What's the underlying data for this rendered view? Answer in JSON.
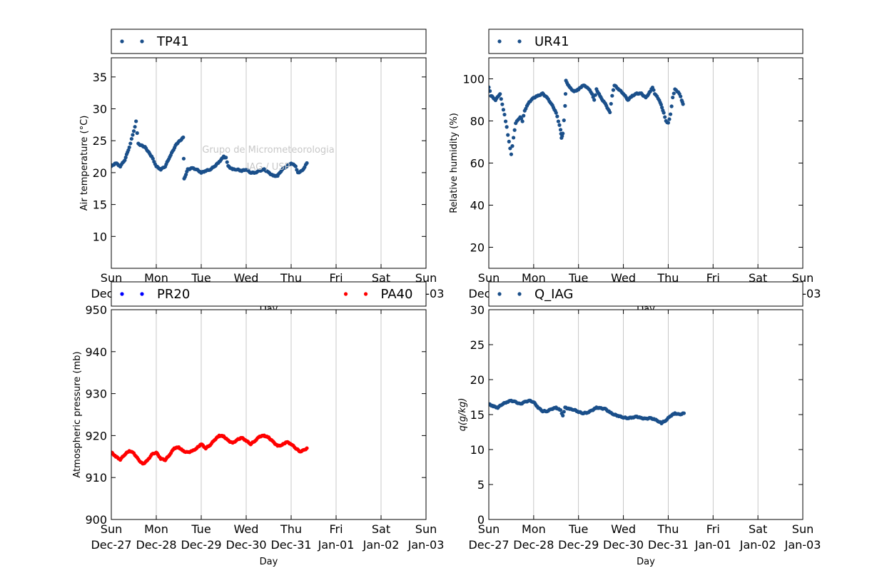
{
  "watermark": {
    "line1": "Grupo de Micrometeorologia",
    "line2": "IAG / USP"
  },
  "colors": {
    "dark_blue": "#1a4f8a",
    "blue": "#0000ff",
    "red": "#ff0000",
    "grid": "#b0b0b0"
  },
  "chart_data": [
    {
      "type": "scatter",
      "panel": "top-left",
      "xlabel": "Day",
      "ylabel": "Air temperature (°C)",
      "ylim": [
        5,
        38
      ],
      "yticks": [
        "10",
        "15",
        "20",
        "25",
        "30",
        "35"
      ],
      "x_ticks": [
        "Sun\nDec-27",
        "Mon\nDec-28",
        "Tue\nDec-29",
        "Wed\nDec-30",
        "Thu\nDec-31",
        "Fri\nJan-01",
        "Sat\nJan-02",
        "Sun\nJan-03"
      ],
      "legend": [
        "TP41"
      ],
      "legend_position": "top",
      "grid": "x",
      "series": [
        {
          "name": "TP41",
          "color": "#1a4f8a",
          "points": [
            [
              0,
              21.0
            ],
            [
              0.1,
              21.5
            ],
            [
              0.2,
              21.0
            ],
            [
              0.3,
              22.0
            ],
            [
              0.4,
              24.0
            ],
            [
              0.5,
              26.5
            ],
            [
              0.55,
              28.0
            ],
            [
              0.6,
              24.5
            ],
            [
              0.75,
              24.0
            ],
            [
              0.9,
              22.5
            ],
            [
              1.0,
              21.0
            ],
            [
              1.1,
              20.5
            ],
            [
              1.2,
              21.0
            ],
            [
              1.3,
              22.5
            ],
            [
              1.45,
              24.5
            ],
            [
              1.6,
              25.5
            ],
            [
              1.62,
              19.0
            ],
            [
              1.7,
              20.5
            ],
            [
              1.8,
              20.7
            ],
            [
              1.9,
              20.5
            ],
            [
              2.0,
              20.0
            ],
            [
              2.1,
              20.3
            ],
            [
              2.2,
              20.5
            ],
            [
              2.3,
              21.0
            ],
            [
              2.4,
              21.7
            ],
            [
              2.5,
              22.5
            ],
            [
              2.55,
              22.3
            ],
            [
              2.6,
              21.0
            ],
            [
              2.7,
              20.5
            ],
            [
              2.8,
              20.5
            ],
            [
              2.9,
              20.3
            ],
            [
              3.0,
              20.5
            ],
            [
              3.1,
              20.0
            ],
            [
              3.2,
              20.0
            ],
            [
              3.3,
              20.3
            ],
            [
              3.4,
              20.5
            ],
            [
              3.5,
              20.0
            ],
            [
              3.6,
              19.5
            ],
            [
              3.7,
              19.5
            ],
            [
              3.8,
              20.5
            ],
            [
              3.9,
              21.0
            ],
            [
              4.0,
              21.5
            ],
            [
              4.1,
              21.0
            ],
            [
              4.15,
              20.0
            ],
            [
              4.25,
              20.3
            ],
            [
              4.35,
              21.5
            ]
          ]
        }
      ]
    },
    {
      "type": "scatter",
      "panel": "top-right",
      "xlabel": "Day",
      "ylabel": "Relative humidity (%)",
      "ylim": [
        10,
        110
      ],
      "yticks": [
        "20",
        "40",
        "60",
        "80",
        "100"
      ],
      "x_ticks": [
        "Sun\nDec-27",
        "Mon\nDec-28",
        "Tue\nDec-29",
        "Wed\nDec-30",
        "Thu\nDec-31",
        "Fri\nJan-01",
        "Sat\nJan-02",
        "Sun\nJan-03"
      ],
      "legend": [
        "UR41"
      ],
      "legend_position": "top",
      "grid": "x",
      "series": [
        {
          "name": "UR41",
          "color": "#1a4f8a",
          "points": [
            [
              0,
              96
            ],
            [
              0.05,
              92
            ],
            [
              0.15,
              90
            ],
            [
              0.25,
              93
            ],
            [
              0.3,
              88
            ],
            [
              0.35,
              83
            ],
            [
              0.4,
              77
            ],
            [
              0.45,
              70
            ],
            [
              0.5,
              64
            ],
            [
              0.55,
              72
            ],
            [
              0.6,
              79
            ],
            [
              0.7,
              82
            ],
            [
              0.75,
              80
            ],
            [
              0.8,
              85
            ],
            [
              0.9,
              89
            ],
            [
              1.0,
              91
            ],
            [
              1.1,
              92
            ],
            [
              1.2,
              93
            ],
            [
              1.3,
              91
            ],
            [
              1.4,
              88
            ],
            [
              1.5,
              84
            ],
            [
              1.55,
              80
            ],
            [
              1.6,
              76
            ],
            [
              1.62,
              72
            ],
            [
              1.65,
              74
            ],
            [
              1.7,
              87
            ],
            [
              1.72,
              99
            ],
            [
              1.8,
              96
            ],
            [
              1.9,
              94
            ],
            [
              2.0,
              95
            ],
            [
              2.1,
              97
            ],
            [
              2.2,
              96
            ],
            [
              2.3,
              93
            ],
            [
              2.35,
              90
            ],
            [
              2.4,
              95
            ],
            [
              2.5,
              91
            ],
            [
              2.6,
              88
            ],
            [
              2.7,
              84
            ],
            [
              2.75,
              92
            ],
            [
              2.8,
              97
            ],
            [
              2.9,
              95
            ],
            [
              3.0,
              93
            ],
            [
              3.1,
              90
            ],
            [
              3.2,
              92
            ],
            [
              3.3,
              93
            ],
            [
              3.4,
              93
            ],
            [
              3.5,
              91
            ],
            [
              3.6,
              94
            ],
            [
              3.65,
              96
            ],
            [
              3.7,
              93
            ],
            [
              3.8,
              90
            ],
            [
              3.9,
              84
            ],
            [
              3.95,
              80
            ],
            [
              4.0,
              79
            ],
            [
              4.05,
              83
            ],
            [
              4.1,
              91
            ],
            [
              4.15,
              95
            ],
            [
              4.2,
              94
            ],
            [
              4.25,
              93
            ],
            [
              4.3,
              90
            ],
            [
              4.33,
              88
            ]
          ]
        }
      ]
    },
    {
      "type": "scatter",
      "panel": "bottom-left",
      "xlabel": "Day",
      "ylabel": "Atmospheric pressure (mb)",
      "ylim": [
        900,
        950
      ],
      "yticks": [
        "900",
        "910",
        "920",
        "930",
        "940",
        "950"
      ],
      "x_ticks": [
        "Sun\nDec-27",
        "Mon\nDec-28",
        "Tue\nDec-29",
        "Wed\nDec-30",
        "Thu\nDec-31",
        "Fri\nJan-01",
        "Sat\nJan-02",
        "Sun\nJan-03"
      ],
      "legend": [
        "PR20",
        "PA40"
      ],
      "legend_position": "top",
      "grid": "x",
      "series": [
        {
          "name": "PR20",
          "color": "#0000ff",
          "points": []
        },
        {
          "name": "PA40",
          "color": "#ff0000",
          "points": [
            [
              0,
              916.0
            ],
            [
              0.1,
              915.0
            ],
            [
              0.2,
              914.3
            ],
            [
              0.3,
              915.5
            ],
            [
              0.4,
              916.4
            ],
            [
              0.5,
              915.8
            ],
            [
              0.6,
              914.3
            ],
            [
              0.7,
              913.2
            ],
            [
              0.8,
              914.0
            ],
            [
              0.9,
              915.5
            ],
            [
              1.0,
              916.0
            ],
            [
              1.1,
              914.5
            ],
            [
              1.2,
              914.2
            ],
            [
              1.3,
              915.5
            ],
            [
              1.4,
              917.0
            ],
            [
              1.5,
              917.2
            ],
            [
              1.6,
              916.3
            ],
            [
              1.7,
              916.0
            ],
            [
              1.8,
              916.3
            ],
            [
              1.9,
              917.0
            ],
            [
              2.0,
              918.0
            ],
            [
              2.1,
              917.0
            ],
            [
              2.2,
              917.8
            ],
            [
              2.3,
              919.0
            ],
            [
              2.4,
              920.0
            ],
            [
              2.5,
              919.8
            ],
            [
              2.6,
              918.8
            ],
            [
              2.7,
              918.2
            ],
            [
              2.8,
              919.0
            ],
            [
              2.9,
              919.5
            ],
            [
              3.0,
              918.8
            ],
            [
              3.1,
              918.0
            ],
            [
              3.2,
              918.8
            ],
            [
              3.3,
              919.8
            ],
            [
              3.4,
              920.0
            ],
            [
              3.5,
              919.5
            ],
            [
              3.6,
              918.5
            ],
            [
              3.7,
              917.5
            ],
            [
              3.8,
              917.8
            ],
            [
              3.9,
              918.5
            ],
            [
              4.0,
              918.0
            ],
            [
              4.1,
              917.0
            ],
            [
              4.2,
              916.2
            ],
            [
              4.3,
              916.6
            ],
            [
              4.35,
              917.0
            ]
          ]
        }
      ]
    },
    {
      "type": "scatter",
      "panel": "bottom-right",
      "xlabel": "Day",
      "ylabel": "q(g/kg)",
      "ylim": [
        0,
        30
      ],
      "yticks": [
        "0",
        "5",
        "10",
        "15",
        "20",
        "25",
        "30"
      ],
      "x_ticks": [
        "Sun\nDec-27",
        "Mon\nDec-28",
        "Tue\nDec-29",
        "Wed\nDec-30",
        "Thu\nDec-31",
        "Fri\nJan-01",
        "Sat\nJan-02",
        "Sun\nJan-03"
      ],
      "legend": [
        "Q_IAG"
      ],
      "legend_position": "top",
      "grid": "x",
      "series": [
        {
          "name": "Q_IAG",
          "color": "#1a4f8a",
          "points": [
            [
              0,
              16.5
            ],
            [
              0.1,
              16.2
            ],
            [
              0.2,
              16.0
            ],
            [
              0.3,
              16.5
            ],
            [
              0.4,
              16.8
            ],
            [
              0.5,
              17.0
            ],
            [
              0.6,
              16.8
            ],
            [
              0.7,
              16.5
            ],
            [
              0.8,
              16.8
            ],
            [
              0.9,
              17.0
            ],
            [
              1.0,
              16.8
            ],
            [
              1.1,
              16.0
            ],
            [
              1.2,
              15.5
            ],
            [
              1.3,
              15.5
            ],
            [
              1.4,
              15.8
            ],
            [
              1.5,
              16.0
            ],
            [
              1.6,
              15.6
            ],
            [
              1.65,
              14.8
            ],
            [
              1.7,
              16.0
            ],
            [
              1.8,
              15.8
            ],
            [
              1.9,
              15.7
            ],
            [
              2.0,
              15.4
            ],
            [
              2.1,
              15.2
            ],
            [
              2.2,
              15.3
            ],
            [
              2.3,
              15.6
            ],
            [
              2.4,
              16.0
            ],
            [
              2.5,
              15.9
            ],
            [
              2.6,
              15.8
            ],
            [
              2.7,
              15.3
            ],
            [
              2.8,
              15.0
            ],
            [
              2.9,
              14.8
            ],
            [
              3.0,
              14.6
            ],
            [
              3.1,
              14.5
            ],
            [
              3.2,
              14.6
            ],
            [
              3.3,
              14.7
            ],
            [
              3.4,
              14.5
            ],
            [
              3.5,
              14.4
            ],
            [
              3.6,
              14.5
            ],
            [
              3.7,
              14.3
            ],
            [
              3.8,
              14.0
            ],
            [
              3.85,
              13.8
            ],
            [
              3.95,
              14.2
            ],
            [
              4.05,
              14.8
            ],
            [
              4.15,
              15.2
            ],
            [
              4.25,
              15.0
            ],
            [
              4.35,
              15.2
            ]
          ]
        }
      ]
    }
  ]
}
